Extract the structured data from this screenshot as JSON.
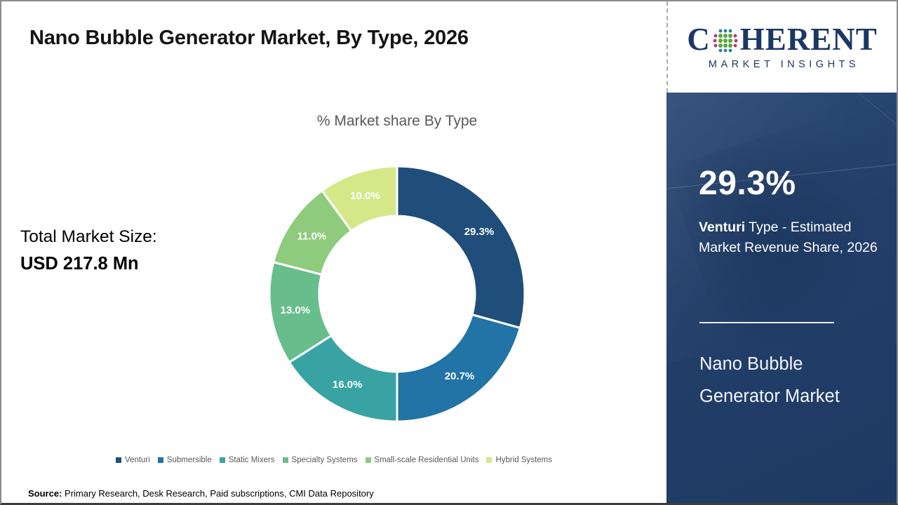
{
  "page": {
    "title": "Nano Bubble Generator Market, By Type, 2026",
    "source_label": "Source:",
    "source_text": "Primary Research, Desk Research, Paid subscriptions, CMI Data Repository"
  },
  "logo": {
    "brand_prefix": "C",
    "brand_suffix": "HERENT",
    "tagline": "MARKET INSIGHTS",
    "brand_color": "#1b3765",
    "globe_dot_colors": {
      "core": "#56a93c",
      "poles": "#2d7fa0",
      "sides": "#bd3379"
    }
  },
  "left_panel": {
    "total_market_label": "Total Market Size:",
    "total_market_value": "USD 217.8 Mn"
  },
  "chart_data": {
    "type": "pie",
    "subtype": "donut",
    "title": "% Market share By Type",
    "categories": [
      "Venturi",
      "Submersible",
      "Static Mixers",
      "Specialty Systems",
      "Small-scale Residential Units",
      "Hybrid Systems"
    ],
    "values": [
      29.3,
      20.7,
      16.0,
      13.0,
      11.0,
      10.0
    ],
    "labels": [
      "29.3%",
      "20.7%",
      "16.0%",
      "13.0%",
      "11.0%",
      "10.0%"
    ],
    "colors": [
      "#1f4e7a",
      "#2174a5",
      "#39a3a3",
      "#68be8b",
      "#8fcb7d",
      "#d4e88a"
    ],
    "start_angle_deg": 0,
    "direction": "clockwise",
    "legend_position": "bottom",
    "total_market_size": "USD 217.8 Mn"
  },
  "side_panel": {
    "bg_color": "#20406a",
    "highlight_value": "29.3%",
    "highlight_lead": "Venturi",
    "highlight_rest": " Type - Estimated Market Revenue Share, 2026",
    "market_name_lines": [
      "Nano Bubble",
      "Generator Market"
    ]
  }
}
